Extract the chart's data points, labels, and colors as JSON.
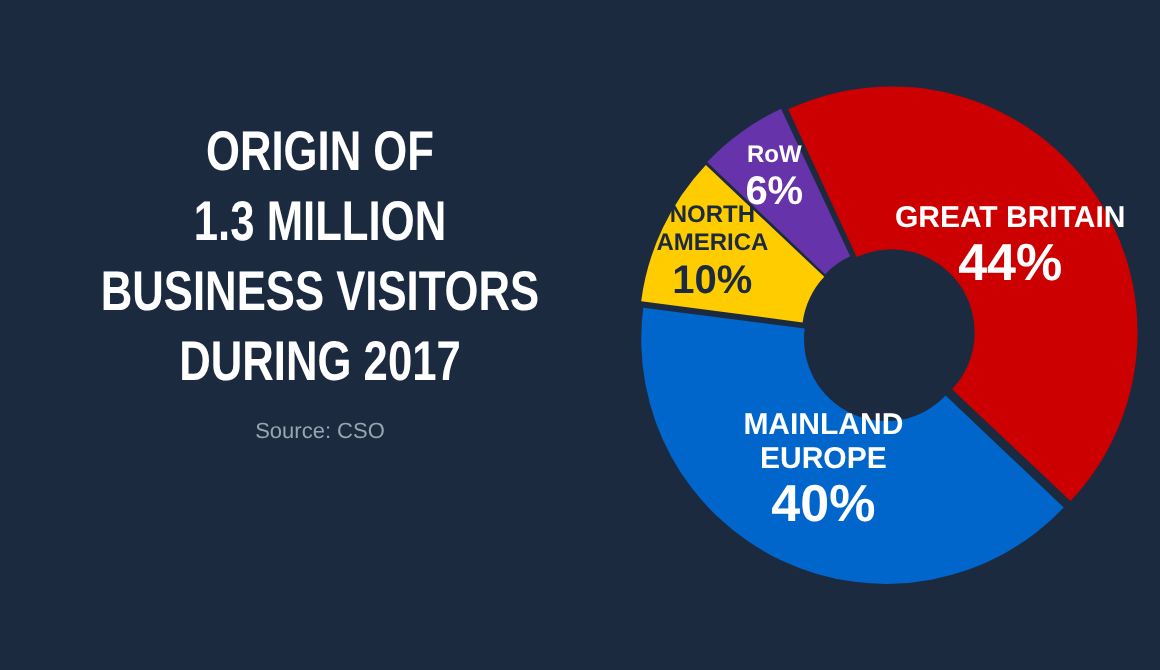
{
  "chart_data": {
    "type": "donut",
    "title": "ORIGIN OF\n1.3 MILLION\nBUSINESS VISITORS\nDURING 2017",
    "categories": [
      "GREAT BRITAIN",
      "MAINLAND EUROPE",
      "NORTH AMERICA",
      "RoW"
    ],
    "values": [
      44,
      40,
      10,
      6
    ],
    "value_labels": [
      "44%",
      "40%",
      "10%",
      "6%"
    ],
    "colors": [
      "#cc0000",
      "#0066cc",
      "#ffcc00",
      "#6633aa"
    ],
    "annotations": [
      "Source: CSO"
    ],
    "legend": false
  }
}
